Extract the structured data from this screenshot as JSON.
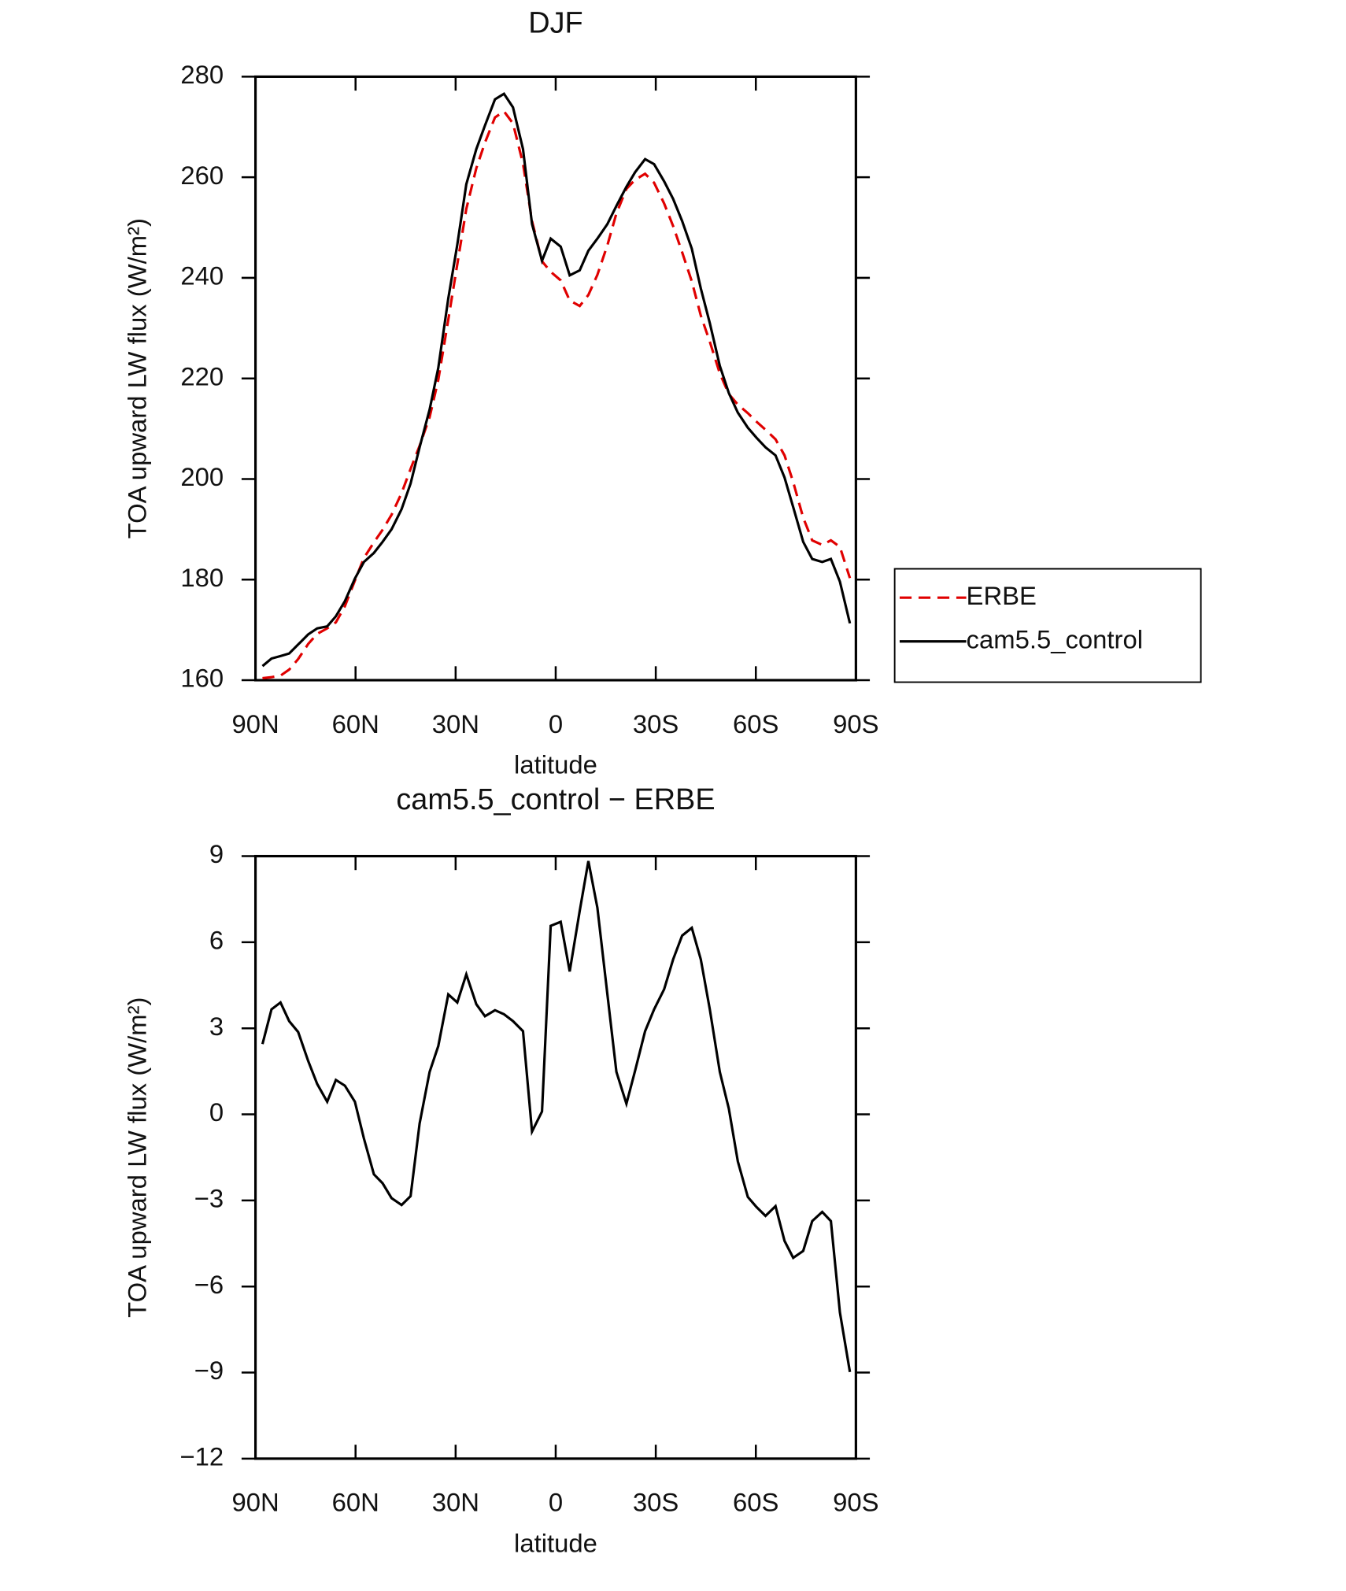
{
  "chart_data": [
    {
      "type": "line",
      "title": "DJF",
      "xlabel": "latitude",
      "ylabel": "TOA upward LW flux (W/m²)",
      "xlim": [
        90,
        -90
      ],
      "xticks": [
        {
          "value": 90,
          "label": "90N"
        },
        {
          "value": 60,
          "label": "60N"
        },
        {
          "value": 30,
          "label": "30N"
        },
        0,
        {
          "value": -30,
          "label": "30S"
        },
        {
          "value": -60,
          "label": "60S"
        },
        {
          "value": -90,
          "label": "90S"
        }
      ],
      "ylim": [
        160,
        280
      ],
      "yticks": [
        160,
        180,
        200,
        220,
        240,
        260,
        280
      ],
      "legend": "outside-right",
      "x": [
        87.9,
        85.2,
        82.5,
        79.9,
        77.2,
        74.2,
        71.5,
        68.5,
        65.9,
        63.2,
        60.2,
        57.5,
        54.5,
        51.9,
        49.2,
        46.2,
        43.5,
        40.8,
        37.8,
        35.2,
        32.2,
        29.5,
        26.8,
        23.8,
        21.2,
        18.2,
        15.5,
        12.8,
        9.8,
        7.1,
        4.1,
        1.5,
        -1.5,
        -4.2,
        -7.2,
        -9.8,
        -12.5,
        -15.5,
        -18.2,
        -21.2,
        -23.8,
        -26.8,
        -29.5,
        -32.5,
        -35.2,
        -37.9,
        -40.8,
        -43.5,
        -46.2,
        -49.2,
        -51.9,
        -54.6,
        -57.6,
        -60.2,
        -62.9,
        -65.9,
        -68.6,
        -71.2,
        -74.2,
        -76.9,
        -79.9,
        -82.5,
        -85.2,
        -88.2
      ],
      "series": [
        {
          "name": "ERBE",
          "color": "#e00000",
          "linestyle": "dashed",
          "values": [
            160.4,
            160.6,
            160.9,
            162.1,
            164.2,
            167.2,
            169.2,
            170.3,
            171.5,
            174.7,
            179.8,
            184.3,
            187.4,
            189.9,
            192.9,
            197.2,
            202.0,
            206.6,
            212.3,
            219.7,
            231.7,
            242.7,
            253.7,
            261.8,
            266.9,
            271.9,
            273.1,
            270.7,
            262.7,
            251.3,
            243.3,
            241.2,
            239.5,
            235.5,
            234.4,
            236.6,
            240.6,
            246.5,
            252.8,
            257.7,
            259.5,
            260.7,
            258.9,
            254.8,
            250.3,
            245.1,
            239.3,
            232.5,
            227.3,
            221.0,
            216.9,
            214.8,
            213.1,
            211.4,
            209.8,
            207.9,
            204.7,
            199.4,
            192.3,
            187.8,
            186.9,
            187.8,
            186.5,
            180.3
          ]
        },
        {
          "name": "cam5.5_control",
          "color": "#000000",
          "linestyle": "solid",
          "values": [
            162.8,
            164.3,
            164.8,
            165.3,
            167.1,
            169.1,
            170.3,
            170.7,
            172.7,
            175.7,
            180.2,
            183.5,
            185.3,
            187.5,
            190.0,
            194.0,
            199.1,
            206.3,
            213.8,
            222.1,
            235.9,
            246.6,
            258.6,
            265.6,
            270.3,
            275.5,
            276.6,
            273.9,
            265.6,
            250.7,
            243.4,
            247.8,
            246.2,
            240.5,
            241.5,
            245.4,
            247.8,
            250.7,
            254.3,
            258.1,
            261.0,
            263.6,
            262.6,
            259.2,
            255.7,
            251.3,
            245.8,
            237.9,
            231.0,
            222.5,
            217.1,
            213.2,
            210.2,
            208.2,
            206.3,
            204.7,
            200.3,
            194.4,
            187.5,
            184.1,
            183.5,
            184.1,
            179.6,
            171.3
          ]
        }
      ]
    },
    {
      "type": "line",
      "title": "cam5.5_control − ERBE",
      "xlabel": "latitude",
      "ylabel": "TOA upward LW flux (W/m²)",
      "xlim": [
        90,
        -90
      ],
      "xticks": [
        {
          "value": 90,
          "label": "90N"
        },
        {
          "value": 60,
          "label": "60N"
        },
        {
          "value": 30,
          "label": "30N"
        },
        0,
        {
          "value": -30,
          "label": "30S"
        },
        {
          "value": -60,
          "label": "60S"
        },
        {
          "value": -90,
          "label": "90S"
        }
      ],
      "ylim": [
        -12,
        9
      ],
      "yticks": [
        {
          "value": -12,
          "label": "−12"
        },
        {
          "value": -9,
          "label": "−9"
        },
        {
          "value": -6,
          "label": "−6"
        },
        {
          "value": -3,
          "label": "−3"
        },
        0,
        3,
        6,
        9
      ],
      "x": [
        87.9,
        85.2,
        82.5,
        79.9,
        77.2,
        74.2,
        71.5,
        68.5,
        65.9,
        63.2,
        60.2,
        57.5,
        54.5,
        51.9,
        49.2,
        46.2,
        43.5,
        40.8,
        37.8,
        35.2,
        32.2,
        29.5,
        26.8,
        23.8,
        21.2,
        18.2,
        15.5,
        12.8,
        9.8,
        7.1,
        4.1,
        1.5,
        -1.5,
        -4.2,
        -7.2,
        -9.8,
        -12.5,
        -15.5,
        -18.2,
        -21.2,
        -23.8,
        -26.8,
        -29.5,
        -32.5,
        -35.2,
        -37.9,
        -40.8,
        -43.5,
        -46.2,
        -49.2,
        -51.9,
        -54.6,
        -57.6,
        -60.2,
        -62.9,
        -65.9,
        -68.6,
        -71.2,
        -74.2,
        -76.9,
        -79.9,
        -82.5,
        -85.2,
        -88.2
      ],
      "series": [
        {
          "color": "#000000",
          "linestyle": "solid",
          "values": [
            2.45,
            3.66,
            3.9,
            3.25,
            2.87,
            1.86,
            1.06,
            0.44,
            1.2,
            1.0,
            0.44,
            -0.84,
            -2.09,
            -2.4,
            -2.92,
            -3.16,
            -2.85,
            -0.32,
            1.48,
            2.38,
            4.18,
            3.9,
            4.88,
            3.84,
            3.42,
            3.63,
            3.49,
            3.25,
            2.9,
            -0.6,
            0.1,
            6.57,
            6.71,
            4.98,
            7.09,
            8.83,
            7.2,
            4.18,
            1.48,
            0.37,
            1.52,
            2.9,
            3.66,
            4.36,
            5.4,
            6.23,
            6.5,
            5.4,
            3.66,
            1.48,
            0.2,
            -1.64,
            -2.88,
            -3.23,
            -3.54,
            -3.2,
            -4.41,
            -5.0,
            -4.76,
            -3.72,
            -3.4,
            -3.72,
            -6.9,
            -8.98
          ]
        }
      ]
    }
  ]
}
